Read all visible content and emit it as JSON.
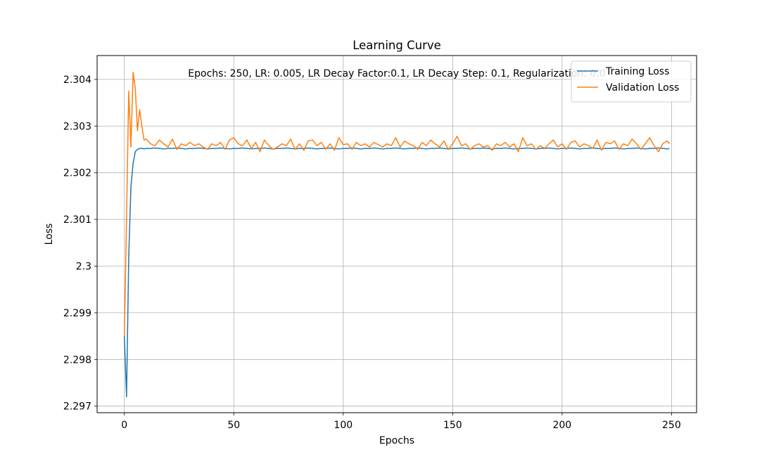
{
  "chart_data": {
    "type": "line",
    "title": "Learning Curve",
    "xlabel": "Epochs",
    "ylabel": "Loss",
    "annotation": "Epochs: 250, LR: 0.005, LR Decay Factor:0.1, LR Decay Step: 0.1, Regularization: 0.0",
    "grid": true,
    "legend": "upper right",
    "xlim": [
      -12.45,
      261.45
    ],
    "xticks": [
      0,
      50,
      100,
      150,
      200,
      250
    ],
    "ylim": [
      2.29686,
      2.30451
    ],
    "yticks": [
      2.297,
      2.298,
      2.299,
      2.3,
      2.301,
      2.302,
      2.303,
      2.304
    ],
    "x": [
      0,
      1,
      2,
      3,
      4,
      5,
      6,
      7,
      8,
      9,
      10,
      12,
      14,
      16,
      18,
      20,
      22,
      24,
      26,
      28,
      30,
      32,
      34,
      36,
      38,
      40,
      42,
      44,
      46,
      48,
      50,
      52,
      54,
      56,
      58,
      60,
      62,
      64,
      66,
      68,
      70,
      72,
      74,
      76,
      78,
      80,
      82,
      84,
      86,
      88,
      90,
      92,
      94,
      96,
      98,
      100,
      102,
      104,
      106,
      108,
      110,
      112,
      114,
      116,
      118,
      120,
      122,
      124,
      126,
      128,
      130,
      132,
      134,
      136,
      138,
      140,
      142,
      144,
      146,
      148,
      150,
      152,
      154,
      156,
      158,
      160,
      162,
      164,
      166,
      168,
      170,
      172,
      174,
      176,
      178,
      180,
      182,
      184,
      186,
      188,
      190,
      192,
      194,
      196,
      198,
      200,
      202,
      204,
      206,
      208,
      210,
      212,
      214,
      216,
      218,
      220,
      222,
      224,
      226,
      228,
      230,
      232,
      234,
      236,
      238,
      240,
      242,
      244,
      246,
      248,
      249
    ],
    "series": [
      {
        "name": "Training Loss",
        "color": "#1f77b4",
        "values": [
          2.2985,
          2.2972,
          2.3002,
          2.3017,
          2.3022,
          2.30245,
          2.3025,
          2.30252,
          2.30252,
          2.30251,
          2.30252,
          2.30252,
          2.30253,
          2.30252,
          2.30251,
          2.30252,
          2.30252,
          2.30253,
          2.30252,
          2.30251,
          2.30252,
          2.30252,
          2.30253,
          2.30252,
          2.30251,
          2.30252,
          2.30252,
          2.30253,
          2.30252,
          2.30251,
          2.30252,
          2.30252,
          2.30253,
          2.30252,
          2.30251,
          2.30252,
          2.30252,
          2.30253,
          2.30252,
          2.30251,
          2.30252,
          2.30252,
          2.30253,
          2.30252,
          2.30251,
          2.30252,
          2.30252,
          2.30253,
          2.30252,
          2.30251,
          2.30252,
          2.30252,
          2.30253,
          2.30252,
          2.30251,
          2.30252,
          2.30252,
          2.30253,
          2.30252,
          2.30251,
          2.30252,
          2.30252,
          2.30253,
          2.30252,
          2.30251,
          2.30252,
          2.30252,
          2.30253,
          2.30252,
          2.30251,
          2.30252,
          2.30252,
          2.30253,
          2.30252,
          2.30251,
          2.30252,
          2.30252,
          2.30253,
          2.30252,
          2.30251,
          2.30252,
          2.30252,
          2.30253,
          2.30252,
          2.30251,
          2.30252,
          2.30252,
          2.30253,
          2.30252,
          2.30251,
          2.30252,
          2.30252,
          2.30253,
          2.30252,
          2.30251,
          2.30252,
          2.30252,
          2.30253,
          2.30252,
          2.30251,
          2.30252,
          2.30252,
          2.30253,
          2.30252,
          2.30251,
          2.30252,
          2.30252,
          2.30253,
          2.30252,
          2.30251,
          2.30252,
          2.30252,
          2.30253,
          2.30252,
          2.30251,
          2.30252,
          2.30252,
          2.30253,
          2.30252,
          2.30251,
          2.30252,
          2.30252,
          2.30253,
          2.30252,
          2.30251,
          2.30252,
          2.30252,
          2.30253,
          2.30252,
          2.30251,
          2.30252
        ]
      },
      {
        "name": "Validation Loss",
        "color": "#ff7f0e",
        "values": [
          2.2985,
          2.301,
          2.30375,
          2.30255,
          2.30415,
          2.3038,
          2.3029,
          2.30335,
          2.303,
          2.3027,
          2.30272,
          2.30262,
          2.30258,
          2.3027,
          2.30262,
          2.30255,
          2.30272,
          2.3025,
          2.30262,
          2.30258,
          2.30265,
          2.30258,
          2.30262,
          2.30255,
          2.3025,
          2.30262,
          2.30258,
          2.30265,
          2.3025,
          2.3027,
          2.30275,
          2.30262,
          2.30258,
          2.3027,
          2.30252,
          2.30265,
          2.30245,
          2.3027,
          2.30258,
          2.3025,
          2.30255,
          2.30262,
          2.30258,
          2.30272,
          2.3025,
          2.30262,
          2.30248,
          2.30268,
          2.3027,
          2.30258,
          2.30265,
          2.3025,
          2.30262,
          2.30248,
          2.30275,
          2.3026,
          2.30262,
          2.3025,
          2.30265,
          2.30258,
          2.30262,
          2.30255,
          2.30265,
          2.3026,
          2.30255,
          2.30262,
          2.30258,
          2.30275,
          2.30255,
          2.30268,
          2.30262,
          2.30258,
          2.3025,
          2.30265,
          2.30258,
          2.3027,
          2.30262,
          2.30255,
          2.30268,
          2.3025,
          2.30262,
          2.30278,
          2.30258,
          2.30262,
          2.3025,
          2.30258,
          2.30262,
          2.30255,
          2.30258,
          2.30248,
          2.30262,
          2.30258,
          2.30265,
          2.30255,
          2.30262,
          2.30245,
          2.30275,
          2.30258,
          2.30262,
          2.3025,
          2.30258,
          2.30252,
          2.30262,
          2.3027,
          2.30255,
          2.30262,
          2.3025,
          2.30265,
          2.30268,
          2.30255,
          2.30262,
          2.30258,
          2.30252,
          2.3027,
          2.30248,
          2.30265,
          2.30262,
          2.30268,
          2.3025,
          2.30262,
          2.30258,
          2.30272,
          2.30262,
          2.3025,
          2.30262,
          2.30275,
          2.30258,
          2.30245,
          2.30262,
          2.30268,
          2.30262
        ]
      }
    ]
  }
}
